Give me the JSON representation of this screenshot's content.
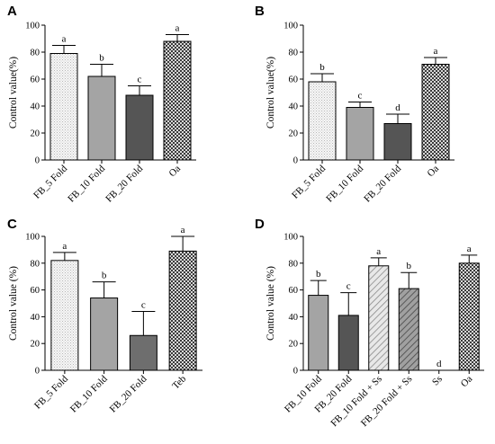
{
  "chart_data": [
    {
      "type": "bar",
      "panel_label": "A",
      "ylabel": "Control value(%)",
      "ylim": [
        0,
        100
      ],
      "yticks": [
        0,
        20,
        40,
        60,
        80,
        100
      ],
      "categories": [
        "FB_5 Fold",
        "FB_10 Fold",
        "FB_20 Fold",
        "Oa"
      ],
      "values": [
        79,
        62,
        48,
        88
      ],
      "errors": [
        6,
        9,
        7,
        5
      ],
      "significance": [
        "a",
        "b",
        "c",
        "a"
      ],
      "fills": [
        "dots-light",
        "gray-mid",
        "gray-dark",
        "check-dark"
      ]
    },
    {
      "type": "bar",
      "panel_label": "B",
      "ylabel": "Control value(%)",
      "ylim": [
        0,
        100
      ],
      "yticks": [
        0,
        20,
        40,
        60,
        80,
        100
      ],
      "categories": [
        "FB_5 Fold",
        "FB_10 Fold",
        "FB_20 Fold",
        "Oa"
      ],
      "values": [
        58,
        39,
        27,
        71
      ],
      "errors": [
        6,
        4,
        7,
        5
      ],
      "significance": [
        "b",
        "c",
        "d",
        "a"
      ],
      "fills": [
        "dots-light",
        "gray-mid",
        "gray-dark",
        "check-dark"
      ]
    },
    {
      "type": "bar",
      "panel_label": "C",
      "ylabel": "Control value (%)",
      "ylim": [
        0,
        100
      ],
      "yticks": [
        0,
        20,
        40,
        60,
        80,
        100
      ],
      "categories": [
        "FB_5 Fold",
        "FB_10 Fold",
        "FB_20 Fold",
        "Teb"
      ],
      "values": [
        82,
        54,
        26,
        89
      ],
      "errors": [
        6,
        12,
        18,
        11
      ],
      "significance": [
        "a",
        "b",
        "c",
        "a"
      ],
      "fills": [
        "dots-light",
        "gray-mid",
        "gray-dark2",
        "check-dark"
      ]
    },
    {
      "type": "bar",
      "panel_label": "D",
      "ylabel": "Control value (%)",
      "ylim": [
        0,
        100
      ],
      "yticks": [
        0,
        20,
        40,
        60,
        80,
        100
      ],
      "categories": [
        "FB_10 Fold",
        "FB_20 Fold",
        "FB_10 Fold + Ss",
        "FB_20 Fold + Ss",
        "Ss",
        "Oa"
      ],
      "values": [
        56,
        41,
        78,
        61,
        0,
        80
      ],
      "errors": [
        11,
        17,
        6,
        12,
        0,
        6
      ],
      "significance": [
        "b",
        "c",
        "a",
        "b",
        "d",
        "a"
      ],
      "fills": [
        "gray-mid",
        "gray-dark",
        "hatch-light",
        "hatch-dark",
        "none",
        "check-dark"
      ]
    }
  ]
}
